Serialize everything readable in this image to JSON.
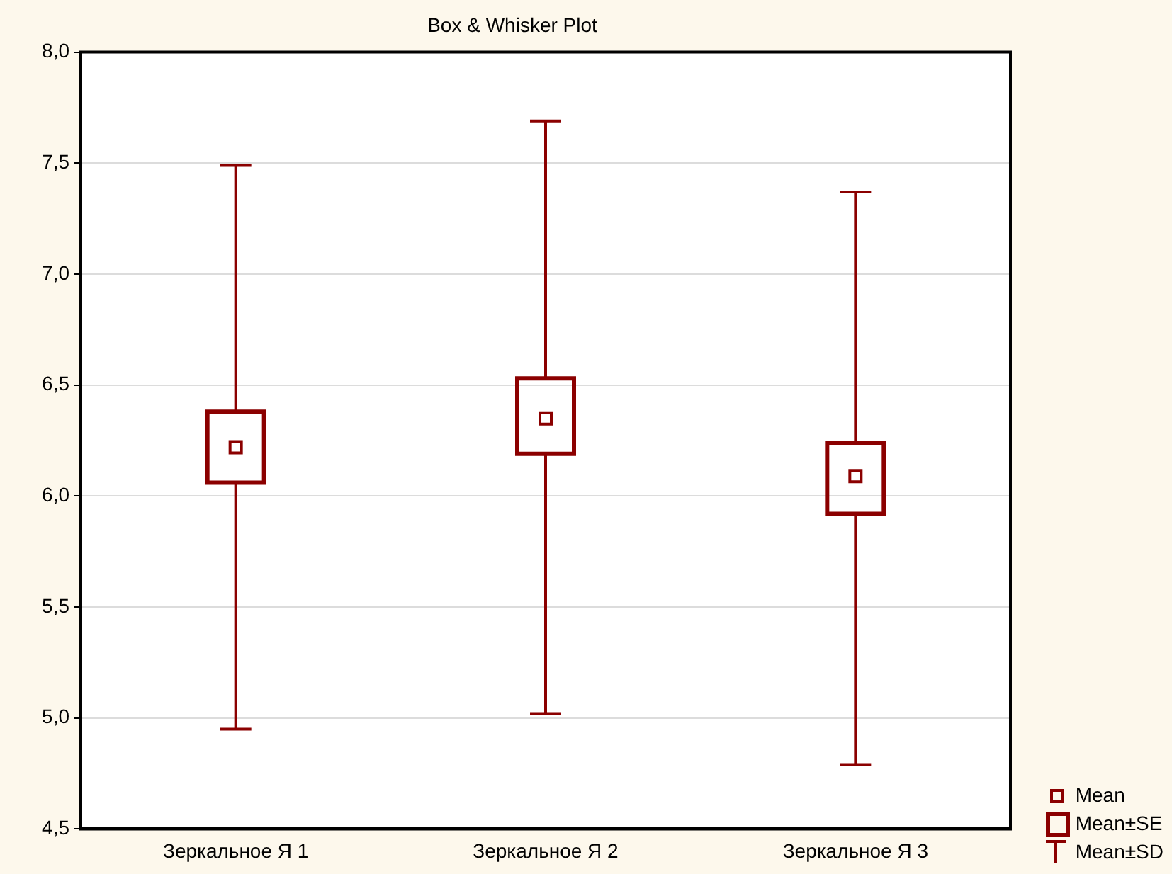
{
  "chart_data": {
    "type": "box",
    "title": "Box & Whisker Plot",
    "categories": [
      "Зеркальное Я 1",
      "Зеркальное Я 2",
      "Зеркальное Я 3"
    ],
    "series": [
      {
        "color": "#8b0000",
        "boxes": [
          {
            "low": 4.95,
            "q1": 6.06,
            "median": 6.22,
            "q3": 6.38,
            "high": 7.49
          },
          {
            "low": 5.02,
            "q1": 6.19,
            "median": 6.35,
            "q3": 6.53,
            "high": 7.69
          },
          {
            "low": 4.79,
            "q1": 5.92,
            "median": 6.09,
            "q3": 6.24,
            "high": 7.37
          }
        ]
      }
    ],
    "annotations": [
      "Mean",
      "Mean±SE",
      "Mean±SD"
    ],
    "ylim": [
      4.5,
      8
    ],
    "yticks": [
      {
        "value": 4.5,
        "label": "4,5"
      },
      {
        "value": 5,
        "label": "5,0"
      },
      {
        "value": 5.5,
        "label": "5,5"
      },
      {
        "value": 6,
        "label": "6,0"
      },
      {
        "value": 6.5,
        "label": "6,5"
      },
      {
        "value": 7,
        "label": "7,0"
      },
      {
        "value": 7.5,
        "label": "7,5"
      },
      {
        "value": 8,
        "label": "8,0"
      }
    ],
    "grid": "y"
  }
}
